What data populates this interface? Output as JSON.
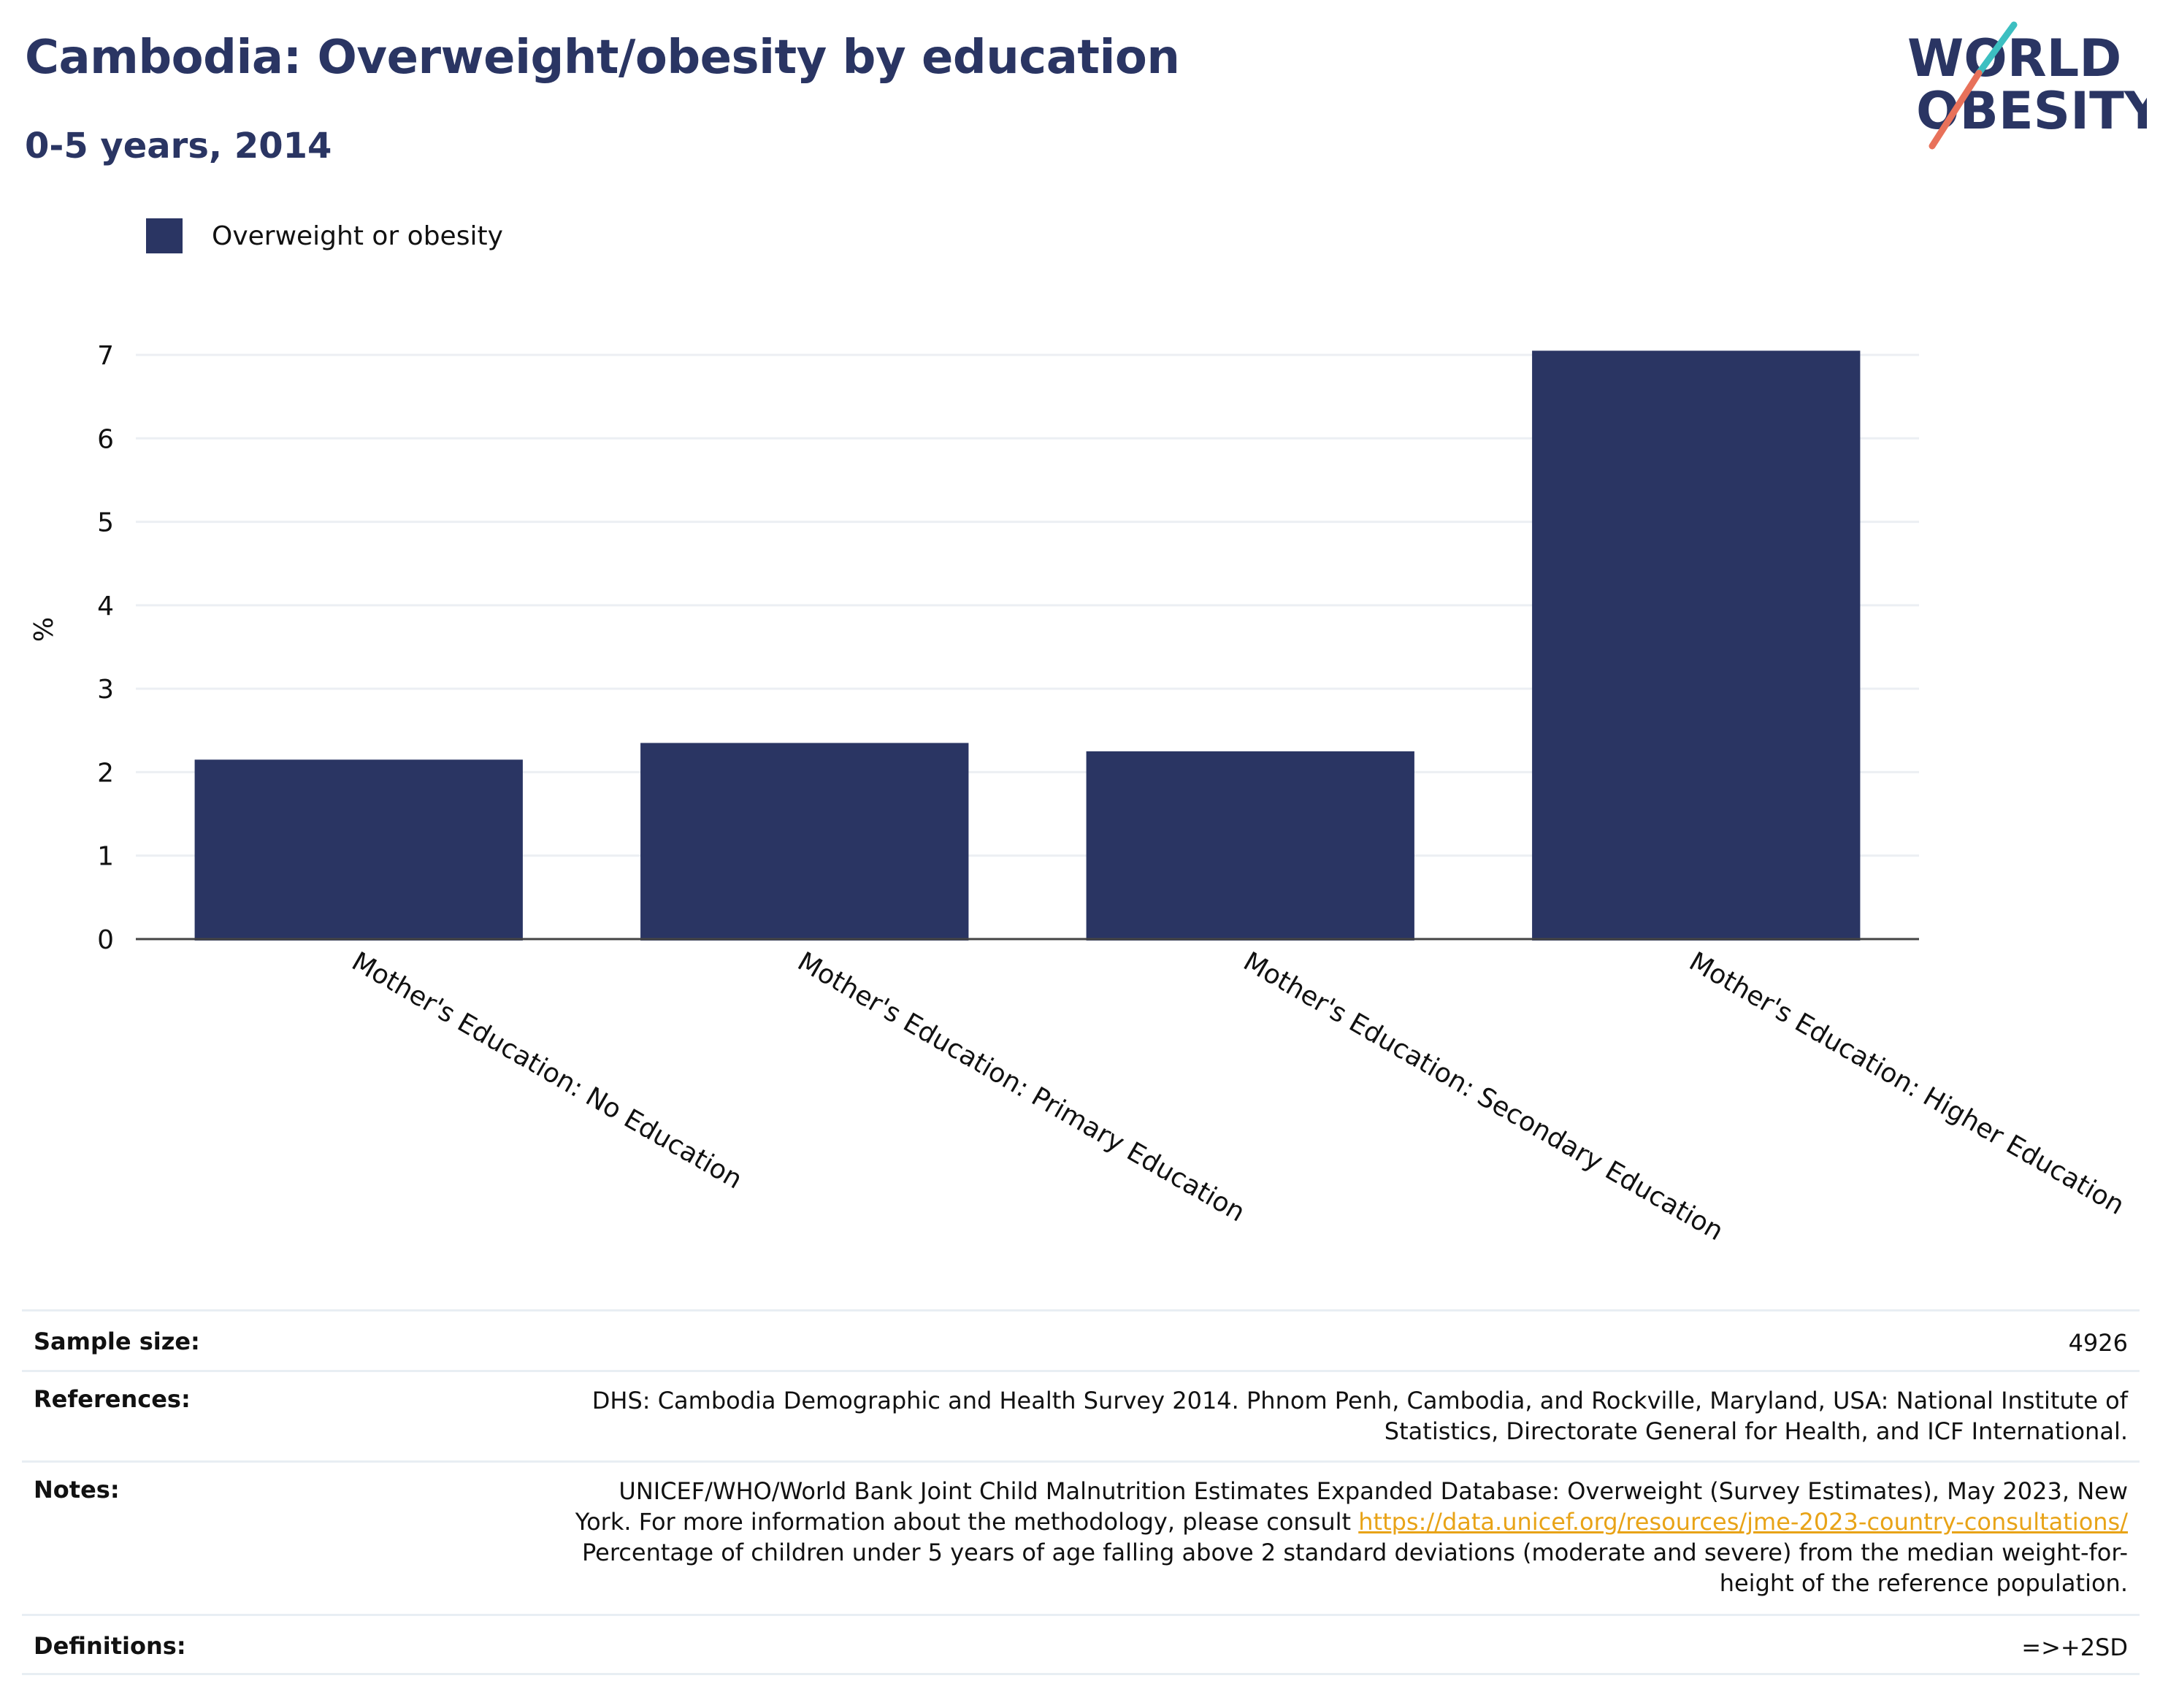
{
  "header": {
    "title": "Cambodia: Overweight/obesity by education",
    "subtitle": "0-5 years, 2014"
  },
  "logo": {
    "line1": "WORLD",
    "line2": "OBESITY",
    "brand_color": "#2a3563",
    "accent_colors": [
      "#3cbfc1",
      "#e8715a"
    ]
  },
  "legend": {
    "label": "Overweight or obesity"
  },
  "colors": {
    "bar": "#2a3563",
    "grid": "#eceff3",
    "link": "#e8a317"
  },
  "chart_data": {
    "type": "bar",
    "categories": [
      "Mother's Education: No Education",
      "Mother's Education: Primary Education",
      "Mother's Education: Secondary Education",
      "Mother's Education: Higher Education"
    ],
    "series": [
      {
        "name": "Overweight or obesity",
        "values": [
          2.15,
          2.35,
          2.25,
          7.05
        ]
      }
    ],
    "ylabel": "%",
    "xlabel": "",
    "ylim": [
      0,
      7.3
    ],
    "yticks": [
      0,
      1,
      2,
      3,
      4,
      5,
      6,
      7
    ],
    "grid": true,
    "legend_position": "top-left"
  },
  "info_table": {
    "sample_size": {
      "label": "Sample size:",
      "value": "4926"
    },
    "references": {
      "label": "References:",
      "lines": [
        "DHS: Cambodia Demographic and Health Survey 2014. Phnom Penh, Cambodia, and Rockville, Maryland, USA: National Institute of",
        "Statistics, Directorate General for Health, and ICF International."
      ]
    },
    "notes": {
      "label": "Notes:",
      "line1": "UNICEF/WHO/World Bank Joint Child Malnutrition Estimates Expanded Database: Overweight (Survey Estimates), May 2023, New",
      "line2_text": "York. For more information about the methodology, please consult ",
      "line2_link": "https://data.unicef.org/resources/jme-2023-country-consultations/",
      "line3": "Percentage of children under 5 years of age falling above 2 standard deviations (moderate and severe) from the median weight-for-",
      "line4": "height of the reference population."
    },
    "definitions": {
      "label": "Definitions:",
      "value": "=>+2SD"
    }
  }
}
